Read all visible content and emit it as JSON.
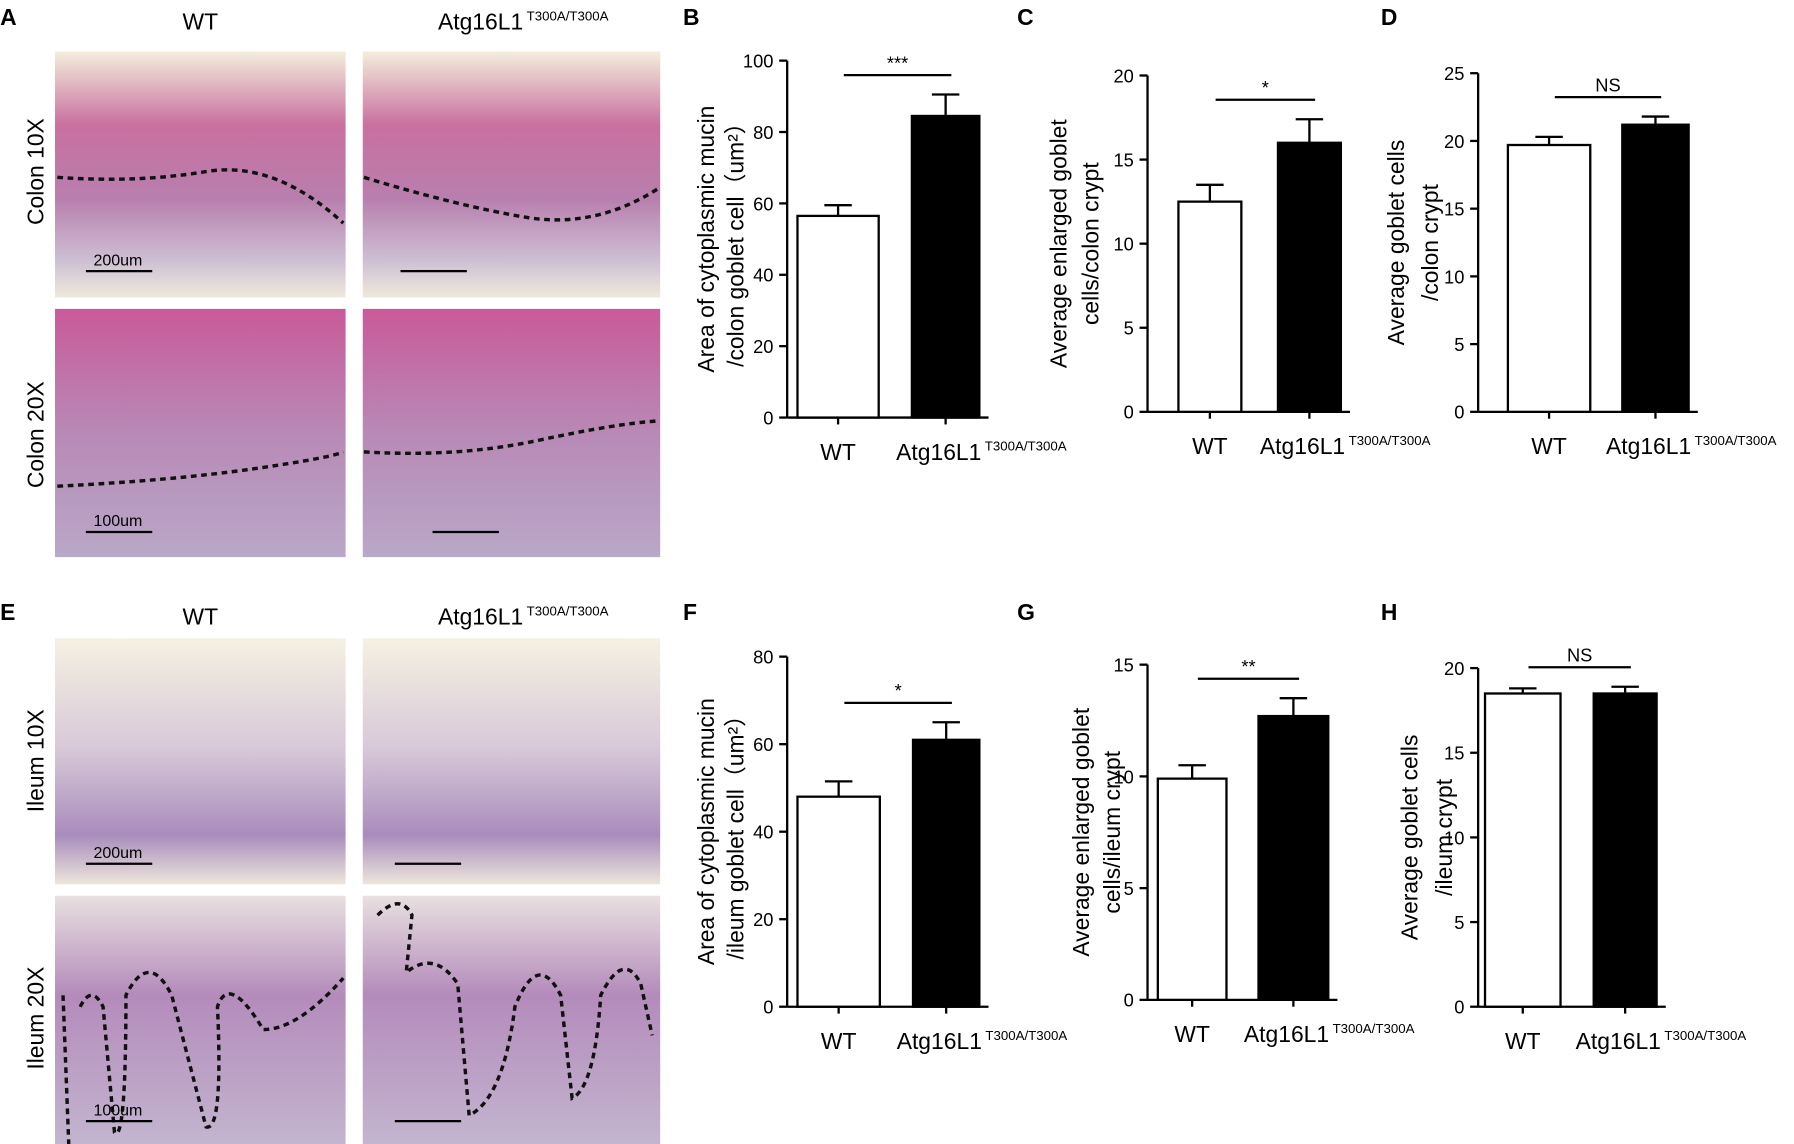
{
  "micrographs": [
    {
      "letter": "A",
      "columns": [
        "WT",
        "Atg16L1"
      ],
      "column_superscript": "T300A/T300A",
      "rows": [
        "Colon 10X",
        "Colon 20X"
      ],
      "scale_bars": [
        "200um",
        "100um"
      ]
    },
    {
      "letter": "E",
      "columns": [
        "WT",
        "Atg16L1"
      ],
      "column_superscript": "T300A/T300A",
      "rows": [
        "Ileum 10X",
        "Ileum 20X"
      ],
      "scale_bars": [
        "200um",
        "100um"
      ]
    }
  ],
  "chart_data": [
    {
      "type": "bar",
      "panel_label": "B",
      "ylabel": [
        "Area of cytoplasmic mucin",
        "/colon goblet cell（um²）"
      ],
      "categories": [
        "WT",
        "Atg16L1"
      ],
      "category_superscript": "T300A/T300A",
      "values": [
        56.5,
        84.5
      ],
      "errors": [
        3,
        6
      ],
      "colors": [
        "#ffffff",
        "#000000"
      ],
      "ylim": [
        0,
        100
      ],
      "yticks": [
        0,
        20,
        40,
        60,
        80,
        100
      ],
      "significance": "***"
    },
    {
      "type": "bar",
      "panel_label": "C",
      "ylabel": [
        "Average enlarged  goblet",
        "cells/colon crypt"
      ],
      "categories": [
        "WT",
        "Atg16L1"
      ],
      "category_superscript": "T300A/T300A",
      "values": [
        12.5,
        16.0
      ],
      "errors": [
        1.0,
        1.4
      ],
      "colors": [
        "#ffffff",
        "#000000"
      ],
      "ylim": [
        0,
        20
      ],
      "yticks": [
        0,
        5,
        10,
        15,
        20
      ],
      "significance": "*"
    },
    {
      "type": "bar",
      "panel_label": "D",
      "ylabel": [
        "Average goblet cells",
        "/colon crypt"
      ],
      "categories": [
        "WT",
        "Atg16L1"
      ],
      "category_superscript": "T300A/T300A",
      "values": [
        19.7,
        21.2
      ],
      "errors": [
        0.6,
        0.6
      ],
      "colors": [
        "#ffffff",
        "#000000"
      ],
      "ylim": [
        0,
        25
      ],
      "yticks": [
        0,
        5,
        10,
        15,
        20,
        25
      ],
      "significance": "NS"
    },
    {
      "type": "bar",
      "panel_label": "F",
      "ylabel": [
        "Area of cytoplasmic mucin",
        "/ileum goblet cell（um²）"
      ],
      "categories": [
        "WT",
        "Atg16L1"
      ],
      "category_superscript": "T300A/T300A",
      "values": [
        48,
        61
      ],
      "errors": [
        3.5,
        4
      ],
      "colors": [
        "#ffffff",
        "#000000"
      ],
      "ylim": [
        0,
        80
      ],
      "yticks": [
        0,
        20,
        40,
        60,
        80
      ],
      "significance": "*"
    },
    {
      "type": "bar",
      "panel_label": "G",
      "ylabel": [
        "Average enlarged goblet",
        "cells/ileum crypt"
      ],
      "categories": [
        "WT",
        "Atg16L1"
      ],
      "category_superscript": "T300A/T300A",
      "values": [
        9.9,
        12.7
      ],
      "errors": [
        0.6,
        0.8
      ],
      "colors": [
        "#ffffff",
        "#000000"
      ],
      "ylim": [
        0,
        15
      ],
      "yticks": [
        0,
        5,
        10,
        15
      ],
      "significance": "**"
    },
    {
      "type": "bar",
      "panel_label": "H",
      "ylabel": [
        "Average goblet cells",
        "/ileum crypt"
      ],
      "categories": [
        "WT",
        "Atg16L1"
      ],
      "category_superscript": "T300A/T300A",
      "values": [
        18.5,
        18.5
      ],
      "errors": [
        0.3,
        0.4
      ],
      "colors": [
        "#ffffff",
        "#000000"
      ],
      "ylim": [
        0,
        20
      ],
      "yticks": [
        0,
        5,
        10,
        15,
        20
      ],
      "significance": "NS"
    }
  ]
}
